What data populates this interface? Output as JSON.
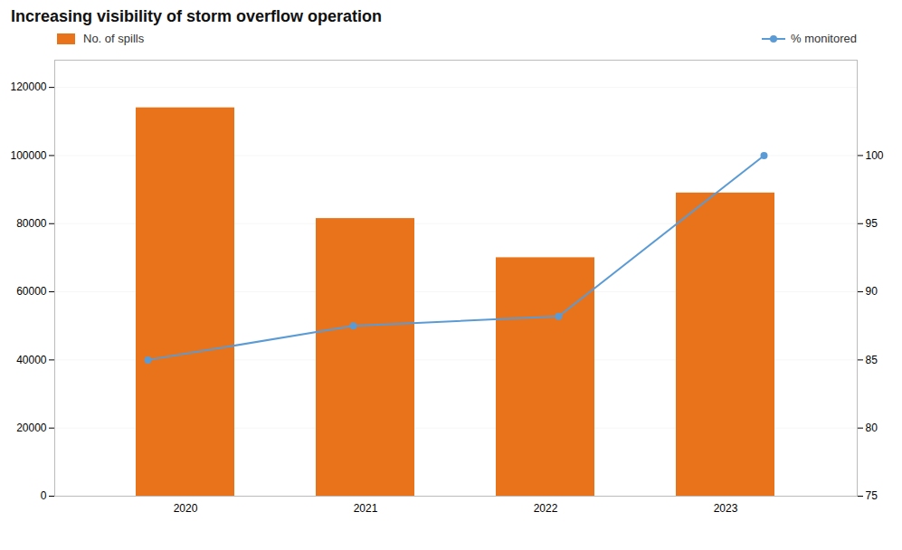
{
  "chart_data": {
    "type": "bar",
    "title": "Increasing visibility of storm overflow operation",
    "categories": [
      "2020",
      "2021",
      "2022",
      "2023"
    ],
    "series": [
      {
        "name": "No. of spills",
        "type": "bar",
        "color": "#E8731A",
        "values": [
          114000,
          81500,
          70000,
          89000
        ]
      },
      {
        "name": "% monitored",
        "type": "line",
        "axis": "y2",
        "color": "#5B9BD5",
        "marker": "circle",
        "values": [
          85.0,
          87.5,
          88.2,
          100.0
        ]
      }
    ],
    "ylim": [
      0,
      128000
    ],
    "yticks": [
      0,
      20000,
      40000,
      60000,
      80000,
      100000,
      120000
    ],
    "y2lim": [
      75,
      107
    ],
    "y2ticks": [
      75,
      80,
      85,
      90,
      95,
      100
    ],
    "grid": true,
    "legend": "top"
  }
}
